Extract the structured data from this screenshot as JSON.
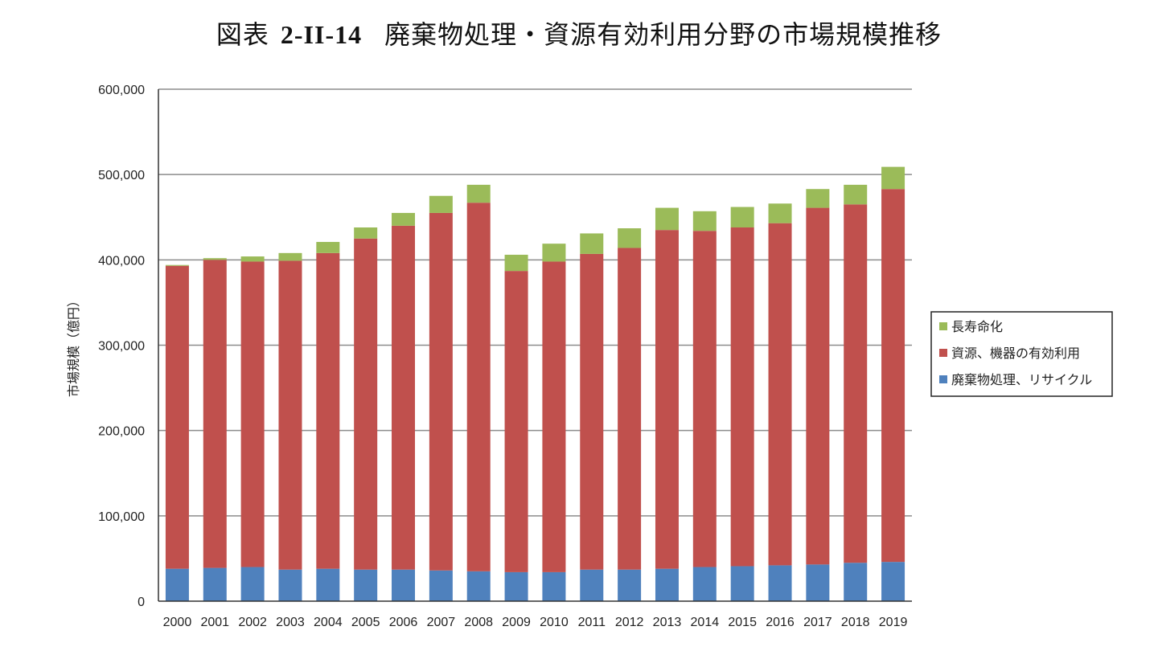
{
  "figure_label": "図表",
  "figure_number": "2-II-14",
  "figure_title": "廃棄物処理・資源有効利用分野の市場規模推移",
  "chart_data": {
    "type": "bar",
    "stacked": true,
    "title": "図表 2-II-14 廃棄物処理・資源有効利用分野の市場規模推移",
    "xlabel": "",
    "ylabel": "市場規模（億円）",
    "ylim": [
      0,
      600000
    ],
    "yticks": [
      "0",
      "100,000",
      "200,000",
      "300,000",
      "400,000",
      "500,000",
      "600,000"
    ],
    "grid": true,
    "legend_position": "right",
    "categories": [
      "2000",
      "2001",
      "2002",
      "2003",
      "2004",
      "2005",
      "2006",
      "2007",
      "2008",
      "2009",
      "2010",
      "2011",
      "2012",
      "2013",
      "2014",
      "2015",
      "2016",
      "2017",
      "2018",
      "2019"
    ],
    "series": [
      {
        "name": "廃棄物処理、リサイクル",
        "color": "#4f81bd",
        "values": [
          38000,
          39000,
          40000,
          37000,
          38000,
          37000,
          37000,
          36000,
          35000,
          34000,
          34000,
          37000,
          37000,
          38000,
          40000,
          41000,
          42000,
          43000,
          45000,
          46000
        ]
      },
      {
        "name": "資源、機器の有効利用",
        "color": "#c0504d",
        "values": [
          355000,
          361000,
          358000,
          362000,
          370000,
          388000,
          403000,
          419000,
          432000,
          353000,
          364000,
          370000,
          377000,
          397000,
          394000,
          397000,
          401000,
          418000,
          420000,
          437000
        ]
      },
      {
        "name": "長寿命化",
        "color": "#9bbb59",
        "values": [
          1000,
          2000,
          6000,
          9000,
          13000,
          13000,
          15000,
          20000,
          21000,
          19000,
          21000,
          24000,
          23000,
          26000,
          23000,
          24000,
          23000,
          22000,
          23000,
          26000
        ]
      }
    ],
    "legend_order": [
      "長寿命化",
      "資源、機器の有効利用",
      "廃棄物処理、リサイクル"
    ]
  }
}
